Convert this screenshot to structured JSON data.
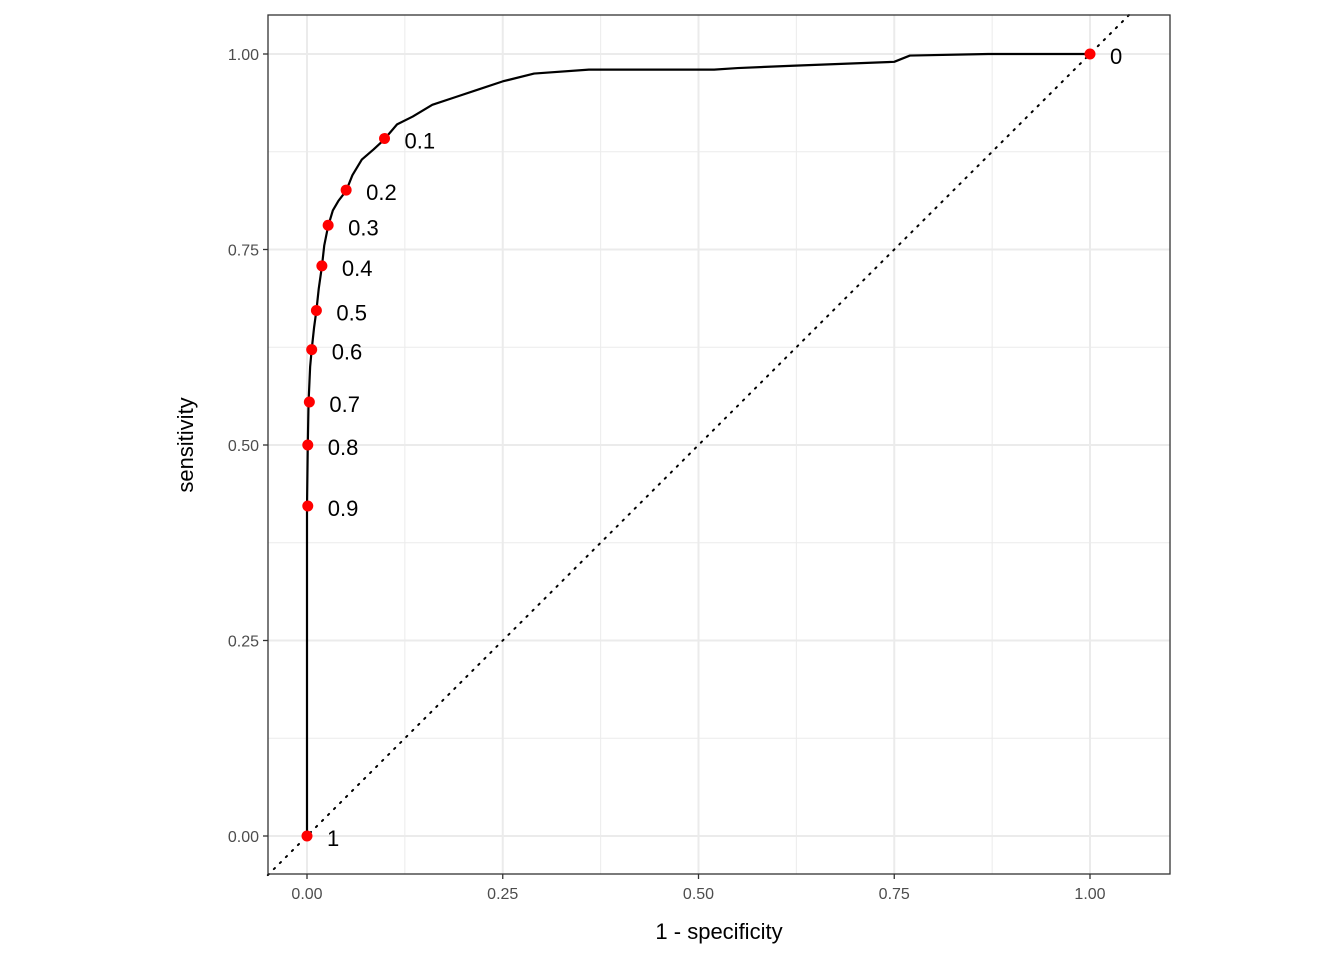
{
  "chart_data": {
    "type": "line",
    "title": "",
    "xlabel": "1 - specificity",
    "ylabel": "sensitivity",
    "xlim": [
      -0.05,
      1.105
    ],
    "ylim": [
      -0.05,
      1.05
    ],
    "x_ticks": [
      "0.00",
      "0.25",
      "0.50",
      "0.75",
      "1.00"
    ],
    "y_ticks": [
      "0.00",
      "0.25",
      "0.50",
      "0.75",
      "1.00"
    ],
    "grid": true,
    "legend": "none",
    "series": [
      {
        "name": "ROC curve",
        "color": "#000000",
        "points": [
          [
            0.0,
            0.0
          ],
          [
            0.0,
            0.3
          ],
          [
            0.0,
            0.42
          ],
          [
            0.001,
            0.5
          ],
          [
            0.002,
            0.555
          ],
          [
            0.004,
            0.6
          ],
          [
            0.006,
            0.622
          ],
          [
            0.009,
            0.65
          ],
          [
            0.012,
            0.672
          ],
          [
            0.015,
            0.7
          ],
          [
            0.019,
            0.728
          ],
          [
            0.022,
            0.755
          ],
          [
            0.027,
            0.78
          ],
          [
            0.033,
            0.8
          ],
          [
            0.04,
            0.812
          ],
          [
            0.05,
            0.825
          ],
          [
            0.058,
            0.845
          ],
          [
            0.07,
            0.865
          ],
          [
            0.085,
            0.878
          ],
          [
            0.098,
            0.89
          ],
          [
            0.115,
            0.91
          ],
          [
            0.135,
            0.92
          ],
          [
            0.16,
            0.935
          ],
          [
            0.19,
            0.945
          ],
          [
            0.22,
            0.955
          ],
          [
            0.25,
            0.965
          ],
          [
            0.29,
            0.975
          ],
          [
            0.36,
            0.98
          ],
          [
            0.52,
            0.98
          ],
          [
            0.55,
            0.982
          ],
          [
            0.62,
            0.985
          ],
          [
            0.75,
            0.99
          ],
          [
            0.77,
            0.998
          ],
          [
            0.87,
            1.0
          ],
          [
            1.0,
            1.0
          ]
        ]
      },
      {
        "name": "reference diagonal",
        "color": "#000000",
        "style": "dotted",
        "points": [
          [
            -0.05,
            -0.05
          ],
          [
            1.05,
            1.05
          ]
        ]
      },
      {
        "name": "threshold points",
        "color": "#ff0000",
        "style": "points",
        "points": [
          {
            "x": 0.0,
            "y": 0.0,
            "label": "1"
          },
          {
            "x": 0.001,
            "y": 0.422,
            "label": "0.9"
          },
          {
            "x": 0.001,
            "y": 0.5,
            "label": "0.8"
          },
          {
            "x": 0.003,
            "y": 0.555,
            "label": "0.7"
          },
          {
            "x": 0.006,
            "y": 0.622,
            "label": "0.6"
          },
          {
            "x": 0.012,
            "y": 0.672,
            "label": "0.5"
          },
          {
            "x": 0.019,
            "y": 0.729,
            "label": "0.4"
          },
          {
            "x": 0.027,
            "y": 0.781,
            "label": "0.3"
          },
          {
            "x": 0.05,
            "y": 0.826,
            "label": "0.2"
          },
          {
            "x": 0.099,
            "y": 0.892,
            "label": "0.1"
          },
          {
            "x": 1.0,
            "y": 1.0,
            "label": "0"
          }
        ]
      }
    ]
  }
}
